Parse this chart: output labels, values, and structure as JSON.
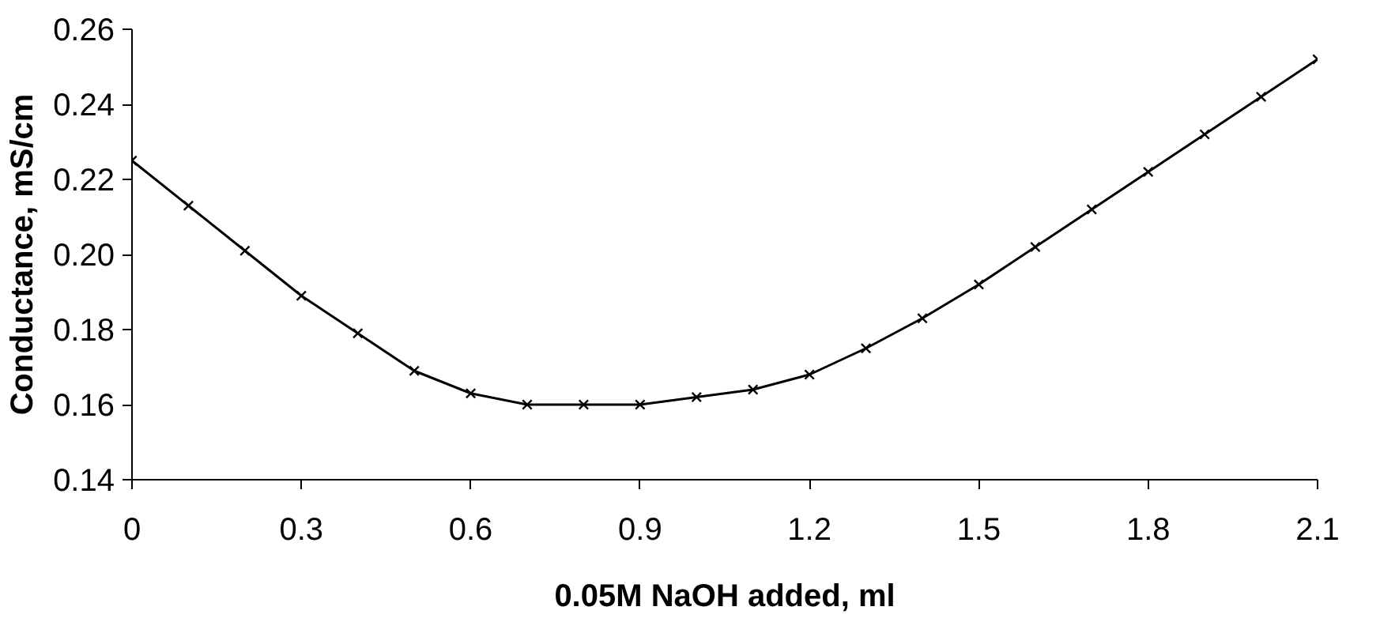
{
  "chart_data": {
    "type": "line",
    "xlabel": "0.05M NaOH added, ml",
    "ylabel": "Conductance, mS/cm",
    "x": [
      0,
      0.1,
      0.2,
      0.3,
      0.4,
      0.5,
      0.6,
      0.7,
      0.8,
      0.9,
      1.0,
      1.1,
      1.2,
      1.3,
      1.4,
      1.5,
      1.6,
      1.7,
      1.8,
      1.9,
      2.0,
      2.1
    ],
    "series": [
      {
        "color": "#000000",
        "values": [
          0.225,
          0.213,
          0.201,
          0.189,
          0.179,
          0.169,
          0.163,
          0.16,
          0.16,
          0.16,
          0.162,
          0.164,
          0.168,
          0.175,
          0.183,
          0.192,
          0.202,
          0.212,
          0.222,
          0.232,
          0.242,
          0.252
        ]
      }
    ],
    "xlim": [
      0,
      2.1
    ],
    "ylim": [
      0.14,
      0.26
    ],
    "xticks": [
      0,
      0.3,
      0.6,
      0.9,
      1.2,
      1.5,
      1.8,
      2.1
    ],
    "yticks": [
      {
        "value": 0.14,
        "label": "0.14"
      },
      {
        "value": 0.16,
        "label": "0.16"
      },
      {
        "value": 0.18,
        "label": "0.18"
      },
      {
        "value": 0.2,
        "label": "0.20"
      },
      {
        "value": 0.22,
        "label": "0.22"
      },
      {
        "value": 0.24,
        "label": "0.24"
      },
      {
        "value": 0.26,
        "label": "0.26"
      }
    ],
    "grid": false,
    "marker": "cross",
    "line_style": "solid"
  }
}
